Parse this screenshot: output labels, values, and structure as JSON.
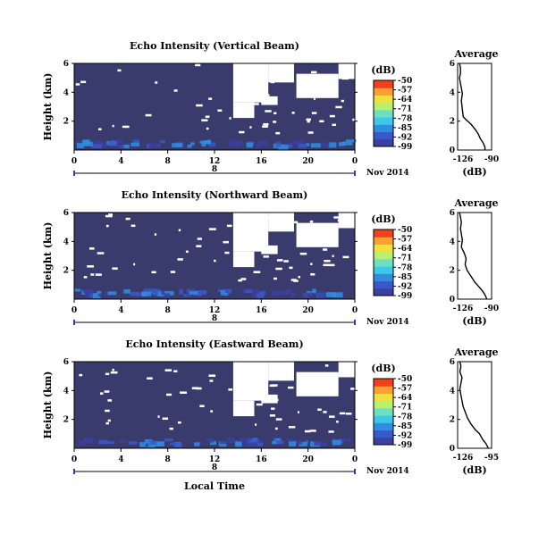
{
  "colors": {
    "background_echo": "#383b6b",
    "scale": [
      "#3b3fa0",
      "#3a58c8",
      "#2f8ee0",
      "#3cc8e8",
      "#6ee0c0",
      "#b8f070",
      "#f0e040",
      "#f8a030",
      "#f04020"
    ]
  },
  "colorbar": {
    "unit_label": "(dB)",
    "tick_labels": [
      "-50",
      "-57",
      "-64",
      "-71",
      "-78",
      "-85",
      "-92",
      "-99"
    ]
  },
  "panels": [
    {
      "title": "Echo Intensity (Vertical Beam)",
      "ylabel": "Height (km)",
      "yticks": [
        "6",
        "4",
        "2"
      ],
      "xticks": [
        "0",
        "4",
        "8",
        "12",
        "16",
        "20",
        "0"
      ],
      "date_day": "8",
      "date_label": "Nov 2014",
      "avg_title": "Average",
      "avg_xticks": [
        "-126",
        "-90"
      ],
      "avg_yticks": [
        "6",
        "4",
        "2",
        "0"
      ],
      "avg_xlabel": "(dB)"
    },
    {
      "title": "Echo Intensity (Northward Beam)",
      "ylabel": "Height (km)",
      "yticks": [
        "6",
        "4",
        "2"
      ],
      "xticks": [
        "0",
        "4",
        "8",
        "12",
        "16",
        "20",
        "0"
      ],
      "date_day": "8",
      "date_label": "Nov 2014",
      "avg_title": "Average",
      "avg_xticks": [
        "-126",
        "-90"
      ],
      "avg_yticks": [
        "6",
        "4",
        "2",
        "0"
      ],
      "avg_xlabel": "(dB)"
    },
    {
      "title": "Echo Intensity (Eastward Beam)",
      "ylabel": "Height (km)",
      "yticks": [
        "6",
        "4",
        "2"
      ],
      "xticks": [
        "0",
        "4",
        "8",
        "12",
        "16",
        "20",
        "0"
      ],
      "date_day": "8",
      "date_label": "Nov 2014",
      "avg_title": "Average",
      "avg_xticks": [
        "-126",
        "-95"
      ],
      "avg_yticks": [
        "6",
        "4",
        "2",
        "0"
      ],
      "avg_xlabel": "(dB)"
    }
  ],
  "xlabel_bottom": "Local Time",
  "chart_data": [
    {
      "type": "heatmap",
      "title": "Echo Intensity (Vertical Beam)",
      "ylabel": "Height (km)",
      "x_range_hours": [
        0,
        24
      ],
      "y_range_km": [
        0,
        6
      ],
      "color_range_db": [
        -99,
        -50
      ]
    },
    {
      "type": "line",
      "title": "Average",
      "xlabel": "(dB)",
      "x_range": [
        -126,
        -90
      ],
      "y_range": [
        0,
        6
      ],
      "x": [
        -97,
        -97,
        -99,
        -102,
        -104,
        -107,
        -112,
        -117,
        -120,
        -121,
        -122,
        -121,
        -122,
        -123,
        -124,
        -123,
        -123,
        -124
      ],
      "y": [
        0.0,
        0.2,
        0.5,
        0.8,
        1.1,
        1.4,
        1.8,
        2.1,
        2.3,
        2.8,
        3.4,
        3.9,
        4.3,
        4.6,
        5.0,
        5.3,
        5.7,
        6.0
      ]
    },
    {
      "type": "heatmap",
      "title": "Echo Intensity (Northward Beam)",
      "ylabel": "Height (km)",
      "x_range_hours": [
        0,
        24
      ],
      "y_range_km": [
        0,
        6
      ],
      "color_range_db": [
        -99,
        -50
      ]
    },
    {
      "type": "line",
      "title": "Average",
      "xlabel": "(dB)",
      "x_range": [
        -126,
        -90
      ],
      "y_range": [
        0,
        6
      ],
      "x": [
        -95,
        -97,
        -100,
        -104,
        -108,
        -112,
        -116,
        -118,
        -117,
        -119,
        -122,
        -121,
        -122,
        -123,
        -122,
        -123,
        -124
      ],
      "y": [
        0.0,
        0.3,
        0.6,
        0.9,
        1.2,
        1.6,
        2.0,
        2.4,
        2.8,
        3.2,
        3.6,
        4.1,
        4.5,
        4.9,
        5.3,
        5.7,
        6.0
      ]
    },
    {
      "type": "heatmap",
      "title": "Echo Intensity (Eastward Beam)",
      "ylabel": "Height (km)",
      "x_range_hours": [
        0,
        24
      ],
      "y_range_km": [
        0,
        6
      ],
      "color_range_db": [
        -99,
        -50
      ]
    },
    {
      "type": "line",
      "title": "Average",
      "xlabel": "(dB)",
      "x_range": [
        -126,
        -95
      ],
      "y_range": [
        0,
        6
      ],
      "x": [
        -98,
        -100,
        -103,
        -106,
        -110,
        -114,
        -117,
        -119,
        -121,
        -122,
        -123,
        -124,
        -123,
        -122,
        -124,
        -123,
        -124
      ],
      "y": [
        0.0,
        0.3,
        0.6,
        1.0,
        1.3,
        1.7,
        2.1,
        2.5,
        2.9,
        3.3,
        3.7,
        4.1,
        4.5,
        4.9,
        5.3,
        5.7,
        6.0
      ]
    }
  ]
}
